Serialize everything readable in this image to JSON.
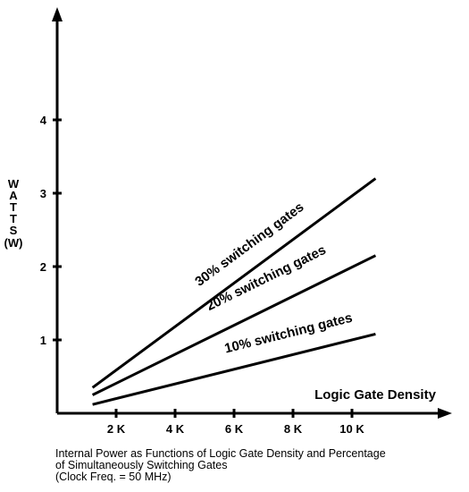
{
  "chart_data": {
    "type": "line",
    "title": "",
    "ylabel": "WATTS (W)",
    "ylabel_letters": [
      "W",
      "A",
      "T",
      "T",
      "S",
      "(W)"
    ],
    "xlabel": "Logic Gate Density",
    "xlim": [
      0,
      11500
    ],
    "ylim": [
      0,
      5.5
    ],
    "xticks": [
      2000,
      4000,
      6000,
      8000,
      10000
    ],
    "xtick_labels": [
      "2 K",
      "4 K",
      "6 K",
      "8 K",
      "10 K"
    ],
    "yticks": [
      1,
      2,
      3,
      4
    ],
    "ytick_labels": [
      "1",
      "2",
      "3",
      "4"
    ],
    "grid": false,
    "legend": "none",
    "series": [
      {
        "name": "30% switching gates",
        "x": [
          1200,
          10800
        ],
        "y": [
          0.35,
          3.2
        ]
      },
      {
        "name": "20% switching gates",
        "x": [
          1200,
          10800
        ],
        "y": [
          0.25,
          2.15
        ]
      },
      {
        "name": "10% switching gates",
        "x": [
          1200,
          10800
        ],
        "y": [
          0.12,
          1.08
        ]
      }
    ],
    "caption": [
      "Internal Power as Functions of Logic Gate Density and Percentage",
      "of Simultaneously Switching Gates",
      "(Clock Freq. = 50 MHz)"
    ]
  }
}
